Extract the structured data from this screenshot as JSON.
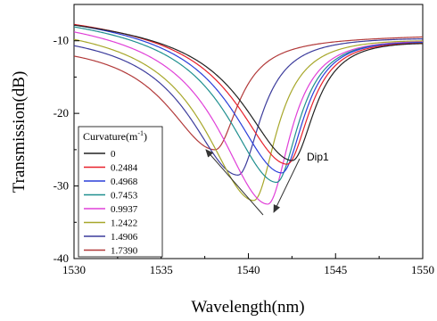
{
  "chart_data": {
    "type": "line",
    "title": "",
    "xlabel": "Wavelength(nm)",
    "ylabel": "Transmission(dB)",
    "xlim": [
      1530,
      1550
    ],
    "ylim": [
      -40,
      -5
    ],
    "xticks": [
      "1530",
      "1535",
      "1540",
      "1545",
      "1550"
    ],
    "yticks": [
      "-40",
      "-30",
      "-20",
      "-10"
    ],
    "legend": {
      "title_main": "Curvature(m",
      "title_sup": "-1",
      "title_end": ")",
      "placement": "bottom-left"
    },
    "annotation": "Dip1",
    "series": [
      {
        "name": "0",
        "color": "#222222",
        "dip_x": 1542.5,
        "dip_y": -26.5,
        "edge_left_y": -6.6,
        "edge_right_y": -9.6
      },
      {
        "name": "0.2484",
        "color": "#e8202a",
        "dip_x": 1542.2,
        "dip_y": -27.0,
        "edge_left_y": -6.4,
        "edge_right_y": -9.6
      },
      {
        "name": "0.4968",
        "color": "#2a3fd9",
        "dip_x": 1541.9,
        "dip_y": -28.2,
        "edge_left_y": -6.3,
        "edge_right_y": -9.5
      },
      {
        "name": "0.7453",
        "color": "#1f8f8f",
        "dip_x": 1541.6,
        "dip_y": -29.5,
        "edge_left_y": -6.4,
        "edge_right_y": -9.5
      },
      {
        "name": "0.9937",
        "color": "#e040d8",
        "dip_x": 1541.1,
        "dip_y": -32.5,
        "edge_left_y": -6.7,
        "edge_right_y": -9.4
      },
      {
        "name": "1.2422",
        "color": "#a7a72a",
        "dip_x": 1540.3,
        "dip_y": -32.0,
        "edge_left_y": -7.5,
        "edge_right_y": -9.4
      },
      {
        "name": "1.4906",
        "color": "#3c3c9c",
        "dip_x": 1539.4,
        "dip_y": -28.5,
        "edge_left_y": -8.4,
        "edge_right_y": -9.3
      },
      {
        "name": "1.7390",
        "color": "#b23a3a",
        "dip_x": 1538.1,
        "dip_y": -25.0,
        "edge_left_y": -9.8,
        "edge_right_y": -9.2
      }
    ],
    "grid": false
  }
}
